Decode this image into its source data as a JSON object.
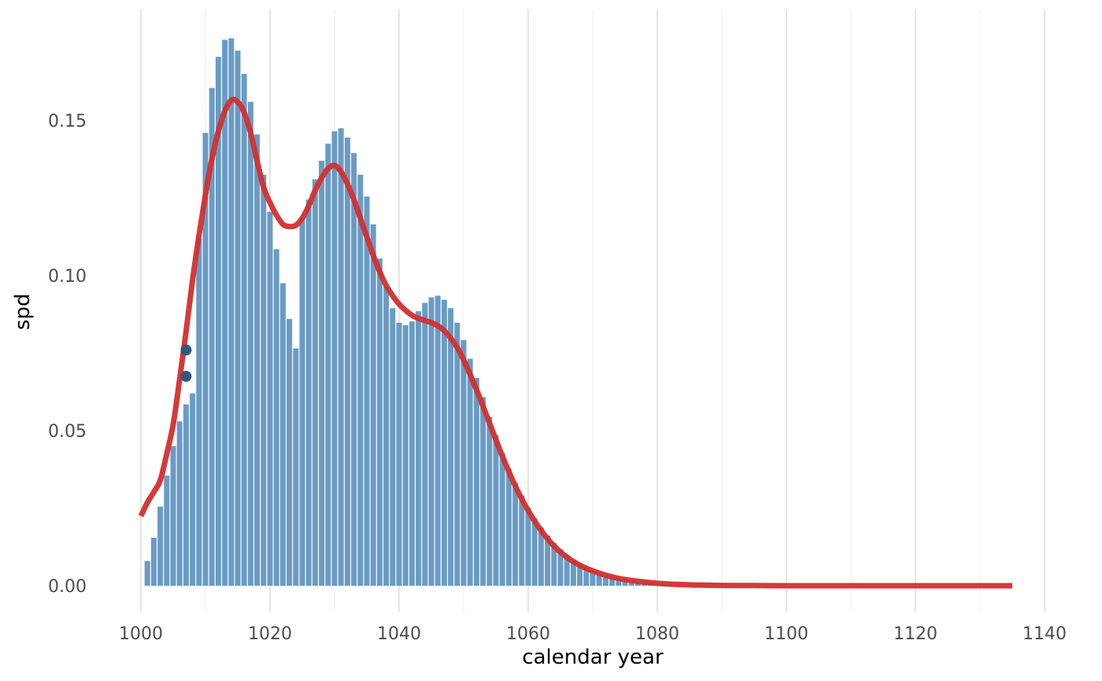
{
  "chart_data": {
    "type": "bar",
    "xlabel": "calendar year",
    "ylabel": "spd",
    "xlim": [
      1000,
      1140
    ],
    "ylim": [
      0.0,
      0.175
    ],
    "x_ticks": [
      1000,
      1020,
      1040,
      1060,
      1080,
      1100,
      1120,
      1140
    ],
    "x_tick_labels": [
      "1000",
      "1020",
      "1040",
      "1060",
      "1080",
      "1100",
      "1120",
      "1140"
    ],
    "y_ticks": [
      0.0,
      0.05,
      0.1,
      0.15
    ],
    "y_tick_labels": [
      "0.00",
      "0.05",
      "0.10",
      "0.15"
    ],
    "grid": "vertical major and minor",
    "bar_width_years": 1,
    "series": [
      {
        "kind": "bars",
        "color": "#6a9bc3",
        "x": [
          1001,
          1002,
          1003,
          1004,
          1005,
          1006,
          1007,
          1008,
          1009,
          1010,
          1011,
          1012,
          1013,
          1014,
          1015,
          1016,
          1017,
          1018,
          1019,
          1020,
          1021,
          1022,
          1023,
          1024,
          1025,
          1026,
          1027,
          1028,
          1029,
          1030,
          1031,
          1032,
          1033,
          1034,
          1035,
          1036,
          1037,
          1038,
          1039,
          1040,
          1041,
          1042,
          1043,
          1044,
          1045,
          1046,
          1047,
          1048,
          1049,
          1050,
          1051,
          1052,
          1053,
          1054,
          1055,
          1056,
          1057,
          1058,
          1059,
          1060,
          1061,
          1062,
          1063,
          1064,
          1065,
          1066,
          1067,
          1068,
          1069,
          1070,
          1071,
          1072,
          1073,
          1074,
          1075,
          1076,
          1077,
          1078,
          1079,
          1080,
          1081,
          1082,
          1083,
          1084,
          1085
        ],
        "values": [
          0.008,
          0.0155,
          0.0255,
          0.0355,
          0.045,
          0.053,
          0.0585,
          0.062,
          0.112,
          0.146,
          0.1605,
          0.1705,
          0.176,
          0.1765,
          0.1725,
          0.165,
          0.156,
          0.1455,
          0.1325,
          0.1205,
          0.1085,
          0.0975,
          0.086,
          0.0765,
          0.1185,
          0.1245,
          0.131,
          0.137,
          0.1425,
          0.1465,
          0.1475,
          0.1445,
          0.1395,
          0.1325,
          0.1255,
          0.1165,
          0.1055,
          0.0965,
          0.0895,
          0.0848,
          0.084,
          0.0852,
          0.0885,
          0.0912,
          0.093,
          0.0935,
          0.0922,
          0.0895,
          0.0848,
          0.0792,
          0.0732,
          0.067,
          0.0608,
          0.0545,
          0.0485,
          0.0428,
          0.0378,
          0.0332,
          0.029,
          0.0252,
          0.0218,
          0.0188,
          0.0162,
          0.0138,
          0.0118,
          0.01,
          0.0085,
          0.0072,
          0.006,
          0.005,
          0.0042,
          0.0035,
          0.0029,
          0.0024,
          0.002,
          0.0016,
          0.0013,
          0.001,
          0.0008,
          0.0006,
          0.0005,
          0.0004,
          0.0003,
          0.0002,
          0.0001
        ]
      },
      {
        "kind": "line",
        "color": "#d32f2f",
        "x": [
          1000,
          1001,
          1002,
          1003,
          1004,
          1005,
          1006,
          1007,
          1008,
          1009,
          1010,
          1011,
          1012,
          1013,
          1014,
          1015,
          1016,
          1017,
          1018,
          1019,
          1020,
          1021,
          1022,
          1023,
          1024,
          1025,
          1026,
          1027,
          1028,
          1029,
          1030,
          1031,
          1032,
          1033,
          1034,
          1035,
          1036,
          1037,
          1038,
          1039,
          1040,
          1041,
          1042,
          1043,
          1044,
          1045,
          1046,
          1047,
          1048,
          1049,
          1050,
          1052,
          1054,
          1056,
          1058,
          1060,
          1062,
          1064,
          1066,
          1068,
          1070,
          1072,
          1075,
          1080,
          1085,
          1090,
          1095,
          1100,
          1110,
          1120,
          1135
        ],
        "values": [
          0.0225,
          0.0268,
          0.0302,
          0.034,
          0.0425,
          0.052,
          0.0665,
          0.082,
          0.0985,
          0.113,
          0.126,
          0.1375,
          0.1465,
          0.153,
          0.1565,
          0.156,
          0.1525,
          0.146,
          0.137,
          0.1285,
          0.1235,
          0.1195,
          0.1165,
          0.1158,
          0.1162,
          0.1185,
          0.1225,
          0.1275,
          0.1315,
          0.1345,
          0.1355,
          0.1335,
          0.1295,
          0.1245,
          0.1185,
          0.1125,
          0.1065,
          0.1012,
          0.0968,
          0.0935,
          0.0908,
          0.0888,
          0.0872,
          0.0862,
          0.0855,
          0.0848,
          0.0838,
          0.0822,
          0.0798,
          0.0768,
          0.0728,
          0.0632,
          0.0525,
          0.0418,
          0.0322,
          0.0242,
          0.0178,
          0.0128,
          0.0092,
          0.0066,
          0.0048,
          0.0034,
          0.002,
          0.0008,
          0.0003,
          0.0001,
          5e-05,
          0.0,
          0.0,
          0.0,
          0.0
        ]
      },
      {
        "kind": "points",
        "color": "#33577a",
        "x": [
          1007,
          1007
        ],
        "values": [
          0.076,
          0.0675
        ]
      }
    ]
  }
}
